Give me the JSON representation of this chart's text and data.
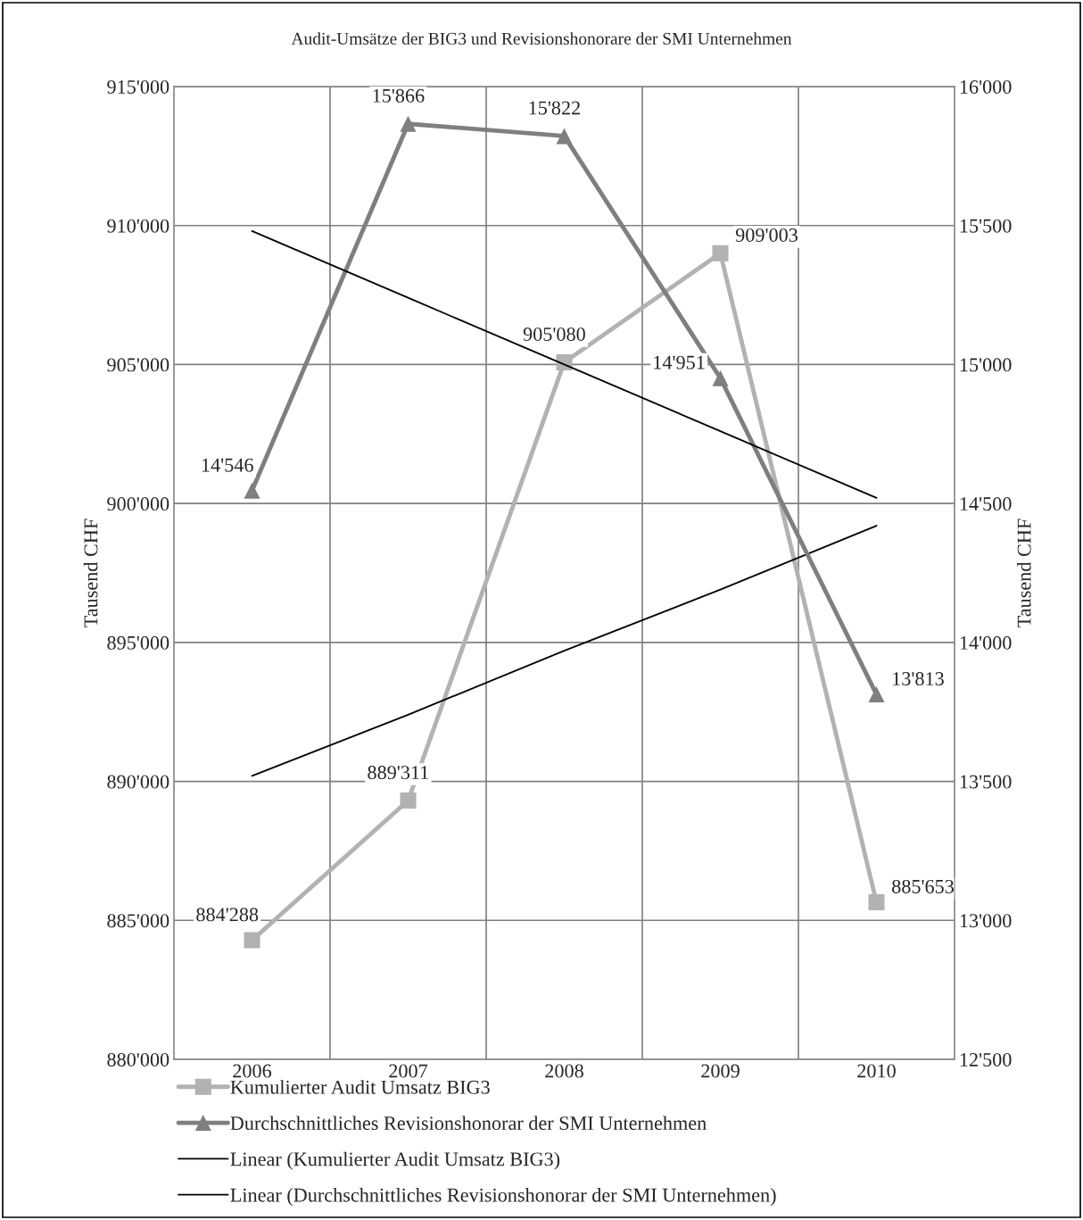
{
  "chart_data": {
    "type": "line",
    "title": "Audit-Umsätze der BIG3 und Revisionshonorare der SMI Unternehmen",
    "categories": [
      "2006",
      "2007",
      "2008",
      "2009",
      "2010"
    ],
    "ylabel": "Tausend CHF",
    "y2label": "Tausend CHF",
    "ylim": [
      880000,
      915000
    ],
    "yticks": [
      {
        "value": 880000,
        "label": "880'000"
      },
      {
        "value": 885000,
        "label": "885'000"
      },
      {
        "value": 890000,
        "label": "890'000"
      },
      {
        "value": 895000,
        "label": "895'000"
      },
      {
        "value": 900000,
        "label": "900'000"
      },
      {
        "value": 905000,
        "label": "905'000"
      },
      {
        "value": 910000,
        "label": "910'000"
      },
      {
        "value": 915000,
        "label": "915'000"
      }
    ],
    "y2lim": [
      12500,
      16000
    ],
    "y2ticks": [
      {
        "value": 12500,
        "label": "12'500"
      },
      {
        "value": 13000,
        "label": "13'000"
      },
      {
        "value": 13500,
        "label": "13'500"
      },
      {
        "value": 14000,
        "label": "14'000"
      },
      {
        "value": 14500,
        "label": "14'500"
      },
      {
        "value": 15000,
        "label": "15'000"
      },
      {
        "value": 15500,
        "label": "15'500"
      },
      {
        "value": 16000,
        "label": "16'000"
      }
    ],
    "grid": true,
    "legend": "bottom",
    "series": [
      {
        "name": "Kumulierter Audit Umsatz BIG3",
        "color": "#b2b2b2",
        "marker": "square",
        "values": [
          884288,
          889311,
          905080,
          909003,
          885653
        ],
        "value_labels": [
          "884'288",
          "889'311",
          "905'080",
          "909'003",
          "885'653"
        ]
      },
      {
        "name": "Durchschnittliches Revisionshonorar der SMI Unternehmen",
        "color": "#7f7f7f",
        "marker": "triangle",
        "axis": "y2",
        "values": [
          14546,
          15866,
          15822,
          14951,
          13813
        ],
        "value_labels": [
          "14'546",
          "15'866",
          "15'822",
          "14'951",
          "13'813"
        ]
      },
      {
        "name": "Linear (Kumulierter Audit Umsatz BIG3)",
        "color": "#000000",
        "marker": "none",
        "values": [
          890200,
          892400,
          894700,
          896900,
          899200
        ]
      },
      {
        "name": "Linear (Durchschnittliches Revisionshonorar der SMI Unternehmen)",
        "color": "#000000",
        "marker": "none",
        "axis": "y2",
        "values": [
          15480,
          15240,
          15000,
          14760,
          14520
        ]
      }
    ]
  }
}
